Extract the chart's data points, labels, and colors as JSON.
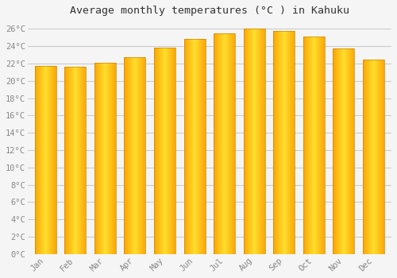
{
  "title": "Average monthly temperatures (°C ) in Kahuku",
  "months": [
    "Jan",
    "Feb",
    "Mar",
    "Apr",
    "May",
    "Jun",
    "Jul",
    "Aug",
    "Sep",
    "Oct",
    "Nov",
    "Dec"
  ],
  "values": [
    21.7,
    21.6,
    22.1,
    22.7,
    23.8,
    24.8,
    25.5,
    26.0,
    25.7,
    25.1,
    23.7,
    22.4
  ],
  "bar_color_main": "#FFC020",
  "bar_color_edge": "#CC8800",
  "background_color": "#F5F5F5",
  "plot_bg_color": "#F5F5F5",
  "grid_color": "#CCCCCC",
  "ylim": [
    0,
    27
  ],
  "ytick_step": 2,
  "title_fontsize": 9.5,
  "tick_fontsize": 7.5,
  "tick_label_color": "#888888",
  "title_color": "#333333"
}
